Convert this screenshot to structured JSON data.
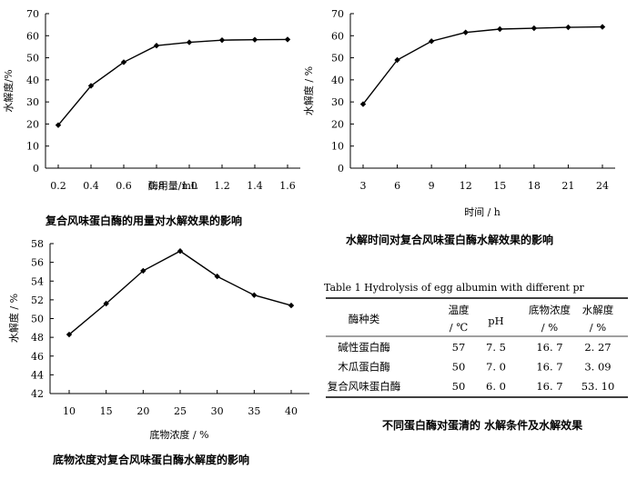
{
  "chart_data": [
    {
      "type": "line",
      "title": "复合风味蛋白酶的用量对水解效果的影响",
      "xlabel": "酶用量/mL",
      "ylabel": "水解度/%",
      "x": [
        0.2,
        0.4,
        0.6,
        0.8,
        1.0,
        1.2,
        1.4,
        1.6
      ],
      "xticks": [
        "0.2",
        "0.4",
        "0.6",
        "0.8",
        "1.0",
        "1.2",
        "1.4",
        "1.6"
      ],
      "series": [
        {
          "values": [
            19.5,
            37.3,
            48,
            55.5,
            57,
            58,
            58.2,
            58.3
          ]
        }
      ],
      "ylim": [
        0,
        70
      ],
      "yticks": [
        "0",
        "10",
        "20",
        "30",
        "40",
        "50",
        "60",
        "70"
      ],
      "grid": false
    },
    {
      "type": "line",
      "title": "水解时间对复合风味蛋白酶水解效果的影响",
      "xlabel": "时间 / h",
      "ylabel": "水解度 / %",
      "x": [
        3,
        6,
        9,
        12,
        15,
        18,
        21,
        24
      ],
      "xticks": [
        "3",
        "6",
        "9",
        "12",
        "15",
        "18",
        "21",
        "24"
      ],
      "series": [
        {
          "values": [
            29,
            49,
            57.5,
            61.5,
            63,
            63.4,
            63.8,
            64
          ]
        }
      ],
      "ylim": [
        0,
        70
      ],
      "yticks": [
        "0",
        "10",
        "20",
        "30",
        "40",
        "50",
        "60",
        "70"
      ],
      "grid": false
    },
    {
      "type": "line",
      "title": "底物浓度对复合风味蛋白酶水解度的影响",
      "xlabel": "底物浓度 / %",
      "ylabel": "水解度 / %",
      "x": [
        10,
        15,
        20,
        25,
        30,
        35,
        40
      ],
      "xticks": [
        "10",
        "15",
        "20",
        "25",
        "30",
        "35",
        "40"
      ],
      "series": [
        {
          "values": [
            48.3,
            51.6,
            55.1,
            57.2,
            54.5,
            52.5,
            51.4
          ]
        }
      ],
      "ylim": [
        42,
        58
      ],
      "yticks": [
        "42",
        "44",
        "46",
        "48",
        "50",
        "52",
        "54",
        "56",
        "58"
      ],
      "grid": false
    },
    {
      "type": "table",
      "heading": "Table  1   Hydrolysis of egg  albumin with different  pr",
      "caption": "不同蛋白酶对蛋清的 水解条件及水解效果",
      "headers": [
        {
          "top": "酶种类",
          "bottom": ""
        },
        {
          "top": "温度",
          "bottom": "/ ℃"
        },
        {
          "top": "pH",
          "bottom": ""
        },
        {
          "top": "底物浓度",
          "bottom": "/ %"
        },
        {
          "top": "水解度",
          "bottom": "/ %"
        }
      ],
      "rows": [
        [
          "碱性蛋白酶",
          "57",
          "7. 5",
          "16. 7",
          "2. 27"
        ],
        [
          "木瓜蛋白酶",
          "50",
          "7. 0",
          "16. 7",
          "3. 09"
        ],
        [
          "复合风味蛋白酶",
          "50",
          "6. 0",
          "16. 7",
          "53. 10"
        ]
      ]
    }
  ]
}
